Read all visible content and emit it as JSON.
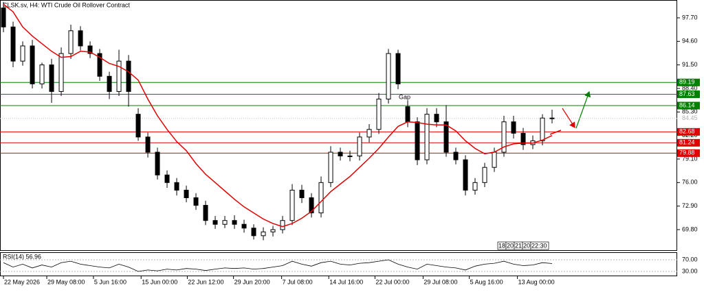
{
  "chart_data": {
    "type": "candlestick",
    "title": "CLSK.sv, H4:  WTI Crude Oil Rollover Contract",
    "candles": {
      "open": [
        99.0,
        96.5,
        92.0,
        94.0,
        89.0,
        91.5,
        88.0,
        93.0,
        96.0,
        94.0,
        93.0,
        90.0,
        88.0,
        92.0,
        85.0,
        82.0,
        80.0,
        77.0,
        76.0,
        75.0,
        74.0,
        73.0,
        71.0,
        70.5,
        71.0,
        70.5,
        70.0,
        69.0,
        69.5,
        69.8,
        71.0,
        75.0,
        74.0,
        72.0,
        76.0,
        80.0,
        79.5,
        79.5,
        82.0,
        83.0,
        87.0,
        93.0,
        86.0,
        84.0,
        79.0,
        85.0,
        84.0,
        80.0,
        79.0,
        75.0,
        76.0,
        78.0,
        80.0,
        84.0,
        82.5,
        81.0,
        81.5,
        84.5
      ],
      "high": [
        99.8,
        97.2,
        94.6,
        94.8,
        91.8,
        92.3,
        93.8,
        96.8,
        96.6,
        94.6,
        93.6,
        90.6,
        93.5,
        92.8,
        85.8,
        82.6,
        80.6,
        77.6,
        76.6,
        75.6,
        74.6,
        73.6,
        71.6,
        71.6,
        71.7,
        71.1,
        70.5,
        70.1,
        70.3,
        71.6,
        75.8,
        75.7,
        74.6,
        76.8,
        80.8,
        80.6,
        80.2,
        82.6,
        83.7,
        87.8,
        93.6,
        93.5,
        86.8,
        84.6,
        85.8,
        85.8,
        86.2,
        80.6,
        79.6,
        76.6,
        78.6,
        80.6,
        84.8,
        84.8,
        83.2,
        82.2,
        85.0,
        85.6
      ],
      "low": [
        95.8,
        91.2,
        91.4,
        88.4,
        88.4,
        86.5,
        87.4,
        92.3,
        93.4,
        92.4,
        89.4,
        87.0,
        87.4,
        86.0,
        81.5,
        79.3,
        76.4,
        75.3,
        74.3,
        73.4,
        72.4,
        70.4,
        69.9,
        70.0,
        69.9,
        69.4,
        68.5,
        68.4,
        68.9,
        69.3,
        70.4,
        73.3,
        71.4,
        71.4,
        75.4,
        78.9,
        78.8,
        78.9,
        81.3,
        82.4,
        86.4,
        88.3,
        83.3,
        78.3,
        78.4,
        83.3,
        79.4,
        78.4,
        74.3,
        74.4,
        75.4,
        77.4,
        79.4,
        81.8,
        80.3,
        80.4,
        80.9,
        83.8
      ],
      "close": [
        96.5,
        92.0,
        94.0,
        89.0,
        91.5,
        88.0,
        93.0,
        96.0,
        94.0,
        93.0,
        90.0,
        88.0,
        92.0,
        88.0,
        82.0,
        80.0,
        77.0,
        76.0,
        75.0,
        74.0,
        73.0,
        71.0,
        70.5,
        71.0,
        70.5,
        70.0,
        69.0,
        69.5,
        69.8,
        71.0,
        75.0,
        74.0,
        72.0,
        76.0,
        80.0,
        79.5,
        79.5,
        82.0,
        83.0,
        87.0,
        93.0,
        89.0,
        84.0,
        79.0,
        85.0,
        84.0,
        80.0,
        79.0,
        75.0,
        76.0,
        78.0,
        80.0,
        84.0,
        82.5,
        81.0,
        81.5,
        84.5,
        84.45
      ],
      "color": "#000000"
    },
    "moving_average": {
      "color": "#e00000",
      "values": [
        99.5,
        98.5,
        96.5,
        95.3,
        94.3,
        93.3,
        92.5,
        92.6,
        93.3,
        93.2,
        92.5,
        91.7,
        91.3,
        90.6,
        89.5,
        87.0,
        84.8,
        83.0,
        81.4,
        80.2,
        78.5,
        77.1,
        76.0,
        74.9,
        73.8,
        72.8,
        72.0,
        71.2,
        70.6,
        70.2,
        70.6,
        71.3,
        72.2,
        73.5,
        74.8,
        75.8,
        76.8,
        78.0,
        79.2,
        80.5,
        82.0,
        83.4,
        84.0,
        83.9,
        83.7,
        83.6,
        83.6,
        82.8,
        81.5,
        80.5,
        79.8,
        80.0,
        80.7,
        81.1,
        81.2,
        81.2,
        81.6,
        82.2
      ]
    },
    "ylim": [
      67.0,
      100.05
    ],
    "yticks": [
      {
        "value": 97.7,
        "label": "97.70"
      },
      {
        "value": 94.6,
        "label": "94.60"
      },
      {
        "value": 91.5,
        "label": "91.50"
      },
      {
        "value": 88.4,
        "label": "88.40"
      },
      {
        "value": 85.3,
        "label": "85.30"
      },
      {
        "value": 82.2,
        "label": "82.20"
      },
      {
        "value": 79.1,
        "label": "79.10"
      },
      {
        "value": 76.0,
        "label": "76.00"
      },
      {
        "value": 72.9,
        "label": "72.90"
      },
      {
        "value": 69.8,
        "label": "69.80"
      }
    ],
    "xlim": [
      -0.36,
      70.0
    ],
    "xticks": [
      {
        "value": 0,
        "label": "22 May 2026"
      },
      {
        "value": 4.5,
        "label": "29 May 08:00"
      },
      {
        "value": 9.35,
        "label": "5 Jun 16:00"
      },
      {
        "value": 14.3,
        "label": "15 Jun 00:00"
      },
      {
        "value": 19.1,
        "label": "22 Jun 12:00"
      },
      {
        "value": 23.9,
        "label": "29 Jun 20:00"
      },
      {
        "value": 28.9,
        "label": "7 Jul 08:00"
      },
      {
        "value": 33.8,
        "label": "14 Jul 16:00"
      },
      {
        "value": 38.6,
        "label": "22 Jul 00:00"
      },
      {
        "value": 43.6,
        "label": "29 Jul 08:00"
      },
      {
        "value": 48.4,
        "label": "5 Aug 16:00"
      },
      {
        "value": 53.4,
        "label": "13 Aug 00:00"
      }
    ],
    "levels": [
      {
        "value": 89.19,
        "color": "#008000"
      },
      {
        "value": 87.63,
        "color": "#008000"
      },
      {
        "value": 86.14,
        "color": "#008000"
      },
      {
        "value": 82.68,
        "color": "#e00000"
      },
      {
        "value": 81.24,
        "color": "#e00000"
      },
      {
        "value": 79.88,
        "color": "#e00000"
      }
    ],
    "current_price": 84.45,
    "annotation": "Gap",
    "time_labels": [
      "18:",
      "20",
      "21",
      "20",
      "22:30"
    ],
    "rsi": {
      "title": "RSI(14) 56.96",
      "color": "#000000",
      "values": [
        60,
        45,
        55,
        42,
        52,
        45,
        60,
        65,
        55,
        50,
        45,
        42,
        55,
        45,
        30,
        35,
        32,
        38,
        35,
        40,
        38,
        33,
        38,
        42,
        40,
        42,
        38,
        40,
        45,
        50,
        65,
        55,
        48,
        60,
        65,
        55,
        52,
        58,
        60,
        65,
        70,
        55,
        45,
        38,
        55,
        50,
        45,
        42,
        35,
        48,
        55,
        58,
        65,
        55,
        50,
        52,
        60,
        56.96
      ],
      "ylim": [
        13.5,
        95.9
      ],
      "yticks": [
        {
          "value": 70,
          "label": "70.00"
        },
        {
          "value": 30,
          "label": "30.00"
        }
      ]
    }
  }
}
